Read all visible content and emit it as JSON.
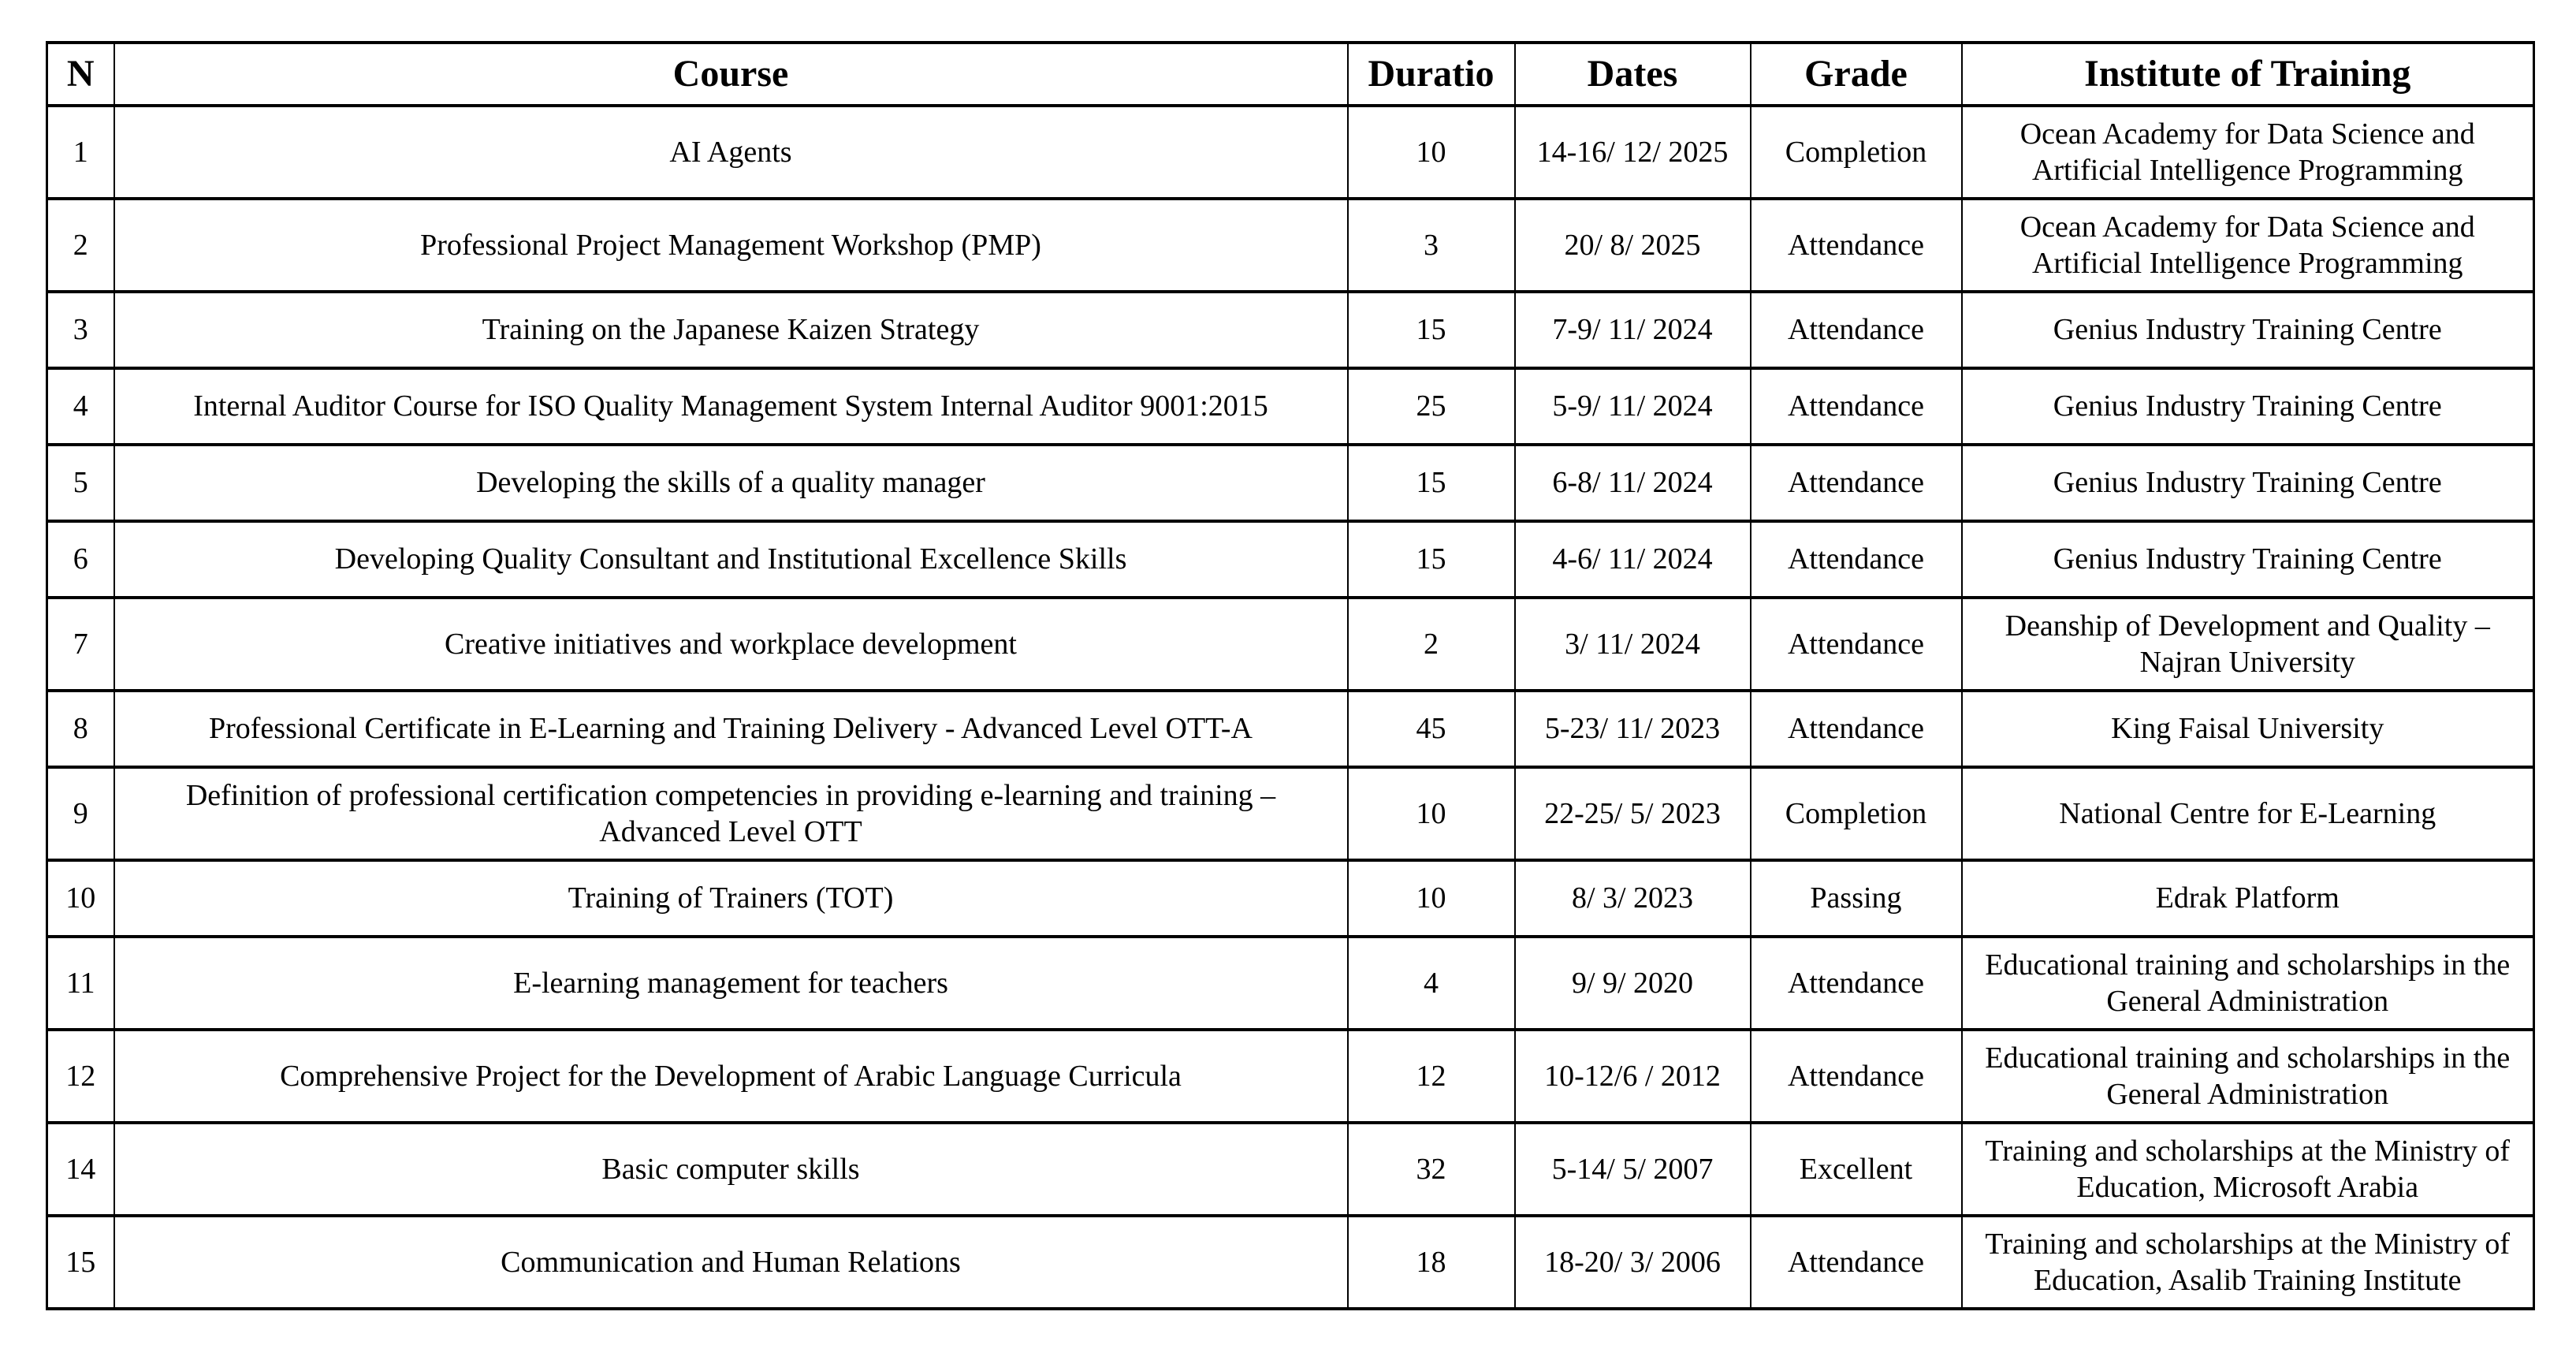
{
  "colors": {
    "text": "#000000",
    "border": "#000000",
    "background": "#ffffff"
  },
  "table": {
    "headers": {
      "n": "N",
      "course": "Course",
      "duration": "Duratio",
      "dates": "Dates",
      "grade": "Grade",
      "institute": "Institute of Training"
    },
    "rows": [
      {
        "n": "1",
        "course": "AI Agents",
        "duration": "10",
        "dates": "14-16/ 12/ 2025",
        "grade": "Completion",
        "institute": "Ocean Academy for Data Science and Artificial Intelligence Programming"
      },
      {
        "n": "2",
        "course": "Professional Project Management Workshop (PMP)",
        "duration": "3",
        "dates": "20/ 8/ 2025",
        "grade": "Attendance",
        "institute": "Ocean Academy for Data Science and Artificial Intelligence Programming"
      },
      {
        "n": "3",
        "course": "Training on the Japanese Kaizen Strategy",
        "duration": "15",
        "dates": "7-9/ 11/ 2024",
        "grade": "Attendance",
        "institute": "Genius Industry Training Centre"
      },
      {
        "n": "4",
        "course": "Internal Auditor Course for ISO Quality Management System Internal Auditor 9001:2015",
        "duration": "25",
        "dates": "5-9/ 11/ 2024",
        "grade": "Attendance",
        "institute": "Genius Industry Training Centre"
      },
      {
        "n": "5",
        "course": "Developing the skills of a quality manager",
        "duration": "15",
        "dates": "6-8/ 11/ 2024",
        "grade": "Attendance",
        "institute": "Genius Industry Training Centre"
      },
      {
        "n": "6",
        "course": "Developing Quality Consultant and Institutional Excellence Skills",
        "duration": "15",
        "dates": "4-6/ 11/ 2024",
        "grade": "Attendance",
        "institute": "Genius Industry Training Centre"
      },
      {
        "n": "7",
        "course": "Creative initiatives and workplace development",
        "duration": "2",
        "dates": "3/ 11/ 2024",
        "grade": "Attendance",
        "institute": "Deanship of Development and Quality – Najran University"
      },
      {
        "n": "8",
        "course": "Professional Certificate in E-Learning and Training Delivery - Advanced Level OTT-A",
        "duration": "45",
        "dates": "5-23/ 11/ 2023",
        "grade": "Attendance",
        "institute": "King Faisal University"
      },
      {
        "n": "9",
        "course": "Definition of professional certification competencies in providing e-learning and training – Advanced Level OTT",
        "duration": "10",
        "dates": "22-25/ 5/ 2023",
        "grade": "Completion",
        "institute": "National Centre for E-Learning"
      },
      {
        "n": "10",
        "course": "Training of Trainers (TOT)",
        "duration": "10",
        "dates": "8/ 3/ 2023",
        "grade": "Passing",
        "institute": "Edrak Platform"
      },
      {
        "n": "11",
        "course": "E-learning management for teachers",
        "duration": "4",
        "dates": "9/ 9/ 2020",
        "grade": "Attendance",
        "institute": "Educational training and scholarships in the General Administration"
      },
      {
        "n": "12",
        "course": "Comprehensive Project for the Development of Arabic Language Curricula",
        "duration": "12",
        "dates": "10-12/6 / 2012",
        "grade": "Attendance",
        "institute": "Educational training and scholarships in the General Administration"
      },
      {
        "n": "14",
        "course": "Basic computer skills",
        "duration": "32",
        "dates": "5-14/ 5/ 2007",
        "grade": "Excellent",
        "institute": "Training and scholarships at the Ministry of Education, Microsoft Arabia"
      },
      {
        "n": "15",
        "course": "Communication and Human Relations",
        "duration": "18",
        "dates": "18-20/ 3/ 2006",
        "grade": "Attendance",
        "institute": "Training and scholarships at the Ministry of Education, Asalib Training Institute"
      }
    ]
  }
}
